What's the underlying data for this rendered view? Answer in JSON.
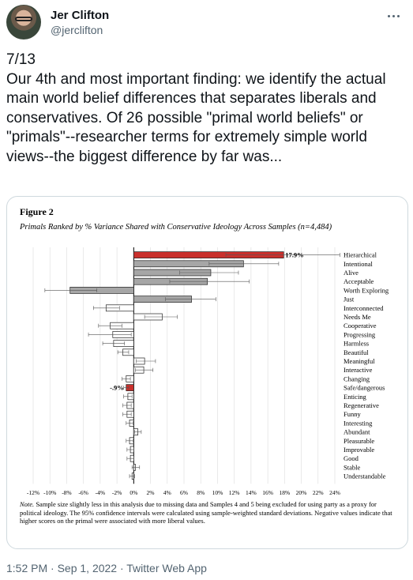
{
  "tweet": {
    "author_name": "Jer Clifton",
    "author_handle": "@jerclifton",
    "text": "7/13\nOur 4th and most important finding: we identify the actual main world belief differences that separates liberals and conservatives. Of 26 possible \"primal world beliefs\" or \"primals\"--researcher terms for extremely simple world views--the biggest difference by far was...",
    "footer": "1:52 PM · Sep 1, 2022 · Twitter Web App"
  },
  "figure": {
    "label": "Figure 2",
    "subtitle": "Primals Ranked by % Variance Shared with Conservative Ideology Across Samples (n=4,484)",
    "note_label": "Note.",
    "note_text": " Sample size slightly less in this analysis due to missing data and Samples 4 and 5 being excluded for using party as a proxy for political ideology. The 95% confidence intervals were calculated using sample-weighted standard deviations. Negative values indicate that higher scores on the primal were associated with more liberal values."
  },
  "colors": {
    "highlight": "#c9302c",
    "dark_bar": "#a6a6a6",
    "light_bar": "#ffffff",
    "twitter_gray": "#536471"
  },
  "chart_data": {
    "type": "bar",
    "orientation": "horizontal",
    "xlim": [
      -12,
      24
    ],
    "x_ticks": [
      "-12%",
      "-10%",
      "-8%",
      "-6%",
      "-4%",
      "-2%",
      "0%",
      "2%",
      "4%",
      "6%",
      "8%",
      "10%",
      "12%",
      "14%",
      "16%",
      "18%",
      "20%",
      "22%",
      "24%"
    ],
    "categories": [
      "Hierarchical",
      "Intentional",
      "Alive",
      "Acceptable",
      "Worth Exploring",
      "Just",
      "Interconnected",
      "Needs Me",
      "Cooperative",
      "Progressing",
      "Harmless",
      "Beautiful",
      "Meaningful",
      "Interactive",
      "Changing",
      "Safe/dangerous",
      "Enticing",
      "Regenerative",
      "Funny",
      "Interesting",
      "Abundant",
      "Pleasurable",
      "Improvable",
      "Good",
      "Stable",
      "Understandable"
    ],
    "values": [
      17.9,
      13.1,
      9.2,
      8.8,
      -7.6,
      6.9,
      -3.3,
      3.4,
      -2.8,
      -2.5,
      -2.4,
      -1.3,
      1.3,
      1.2,
      -0.9,
      -0.9,
      -0.7,
      -0.8,
      -0.8,
      -0.5,
      0.5,
      -0.5,
      -0.4,
      -0.4,
      0.2,
      -0.2
    ],
    "ci": [
      [
        11.0,
        24.6
      ],
      [
        9.0,
        17.3
      ],
      [
        5.5,
        12.5
      ],
      [
        4.3,
        13.8
      ],
      [
        -10.6,
        -4.4
      ],
      [
        3.8,
        9.8
      ],
      [
        -4.8,
        -1.7
      ],
      [
        1.3,
        5.2
      ],
      [
        -4.2,
        -1.4
      ],
      [
        -5.4,
        -0.3
      ],
      [
        -3.7,
        -1.1
      ],
      [
        -1.9,
        -0.6
      ],
      [
        0.3,
        2.6
      ],
      [
        0.2,
        2.3
      ],
      [
        -1.4,
        -0.4
      ],
      [
        -1.2,
        -0.6
      ],
      [
        -1.2,
        -0.2
      ],
      [
        -1.3,
        -0.3
      ],
      [
        -1.3,
        -0.3
      ],
      [
        -0.9,
        -0.1
      ],
      [
        0.1,
        0.9
      ],
      [
        -0.9,
        -0.1
      ],
      [
        -0.8,
        0.0
      ],
      [
        -0.8,
        0.0
      ],
      [
        -0.2,
        0.7
      ],
      [
        -0.5,
        0.1
      ]
    ],
    "highlighted": [
      "Hierarchical",
      "Safe/dangerous"
    ],
    "dark_bars": [
      "Intentional",
      "Alive",
      "Acceptable",
      "Worth Exploring",
      "Just"
    ],
    "data_labels": [
      {
        "category": "Hierarchical",
        "text": "17.9%"
      },
      {
        "category": "Safe/dangerous",
        "text": "-.9%"
      }
    ]
  }
}
